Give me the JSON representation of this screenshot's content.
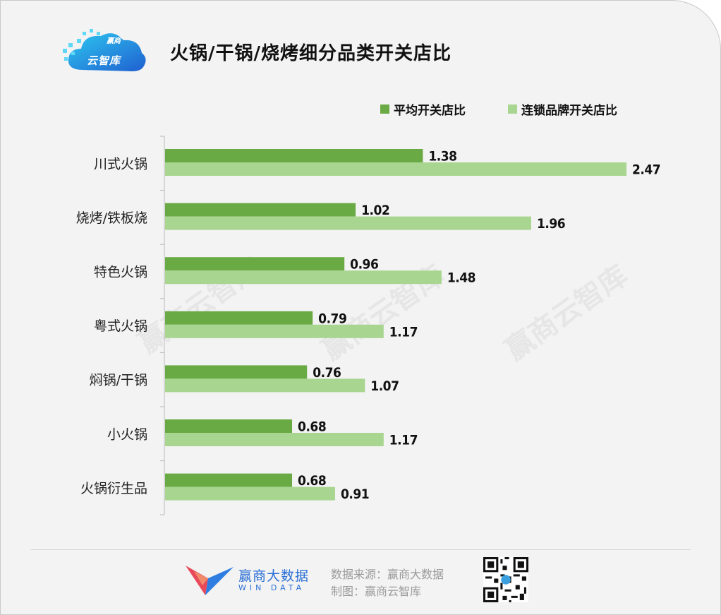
{
  "header": {
    "logo_text": "云智库",
    "logo_top_text": "赢商",
    "title": "火锅/干锅/烧烤细分品类开关店比"
  },
  "colors": {
    "series1": "#6aaa45",
    "series2": "#a8d590",
    "background": "#f3f3f3"
  },
  "chart_data": {
    "type": "bar",
    "orientation": "horizontal",
    "title": "火锅/干锅/烧烤细分品类开关店比",
    "categories": [
      "川式火锅",
      "烧烤/铁板烧",
      "特色火锅",
      "粤式火锅",
      "焖锅/干锅",
      "小火锅",
      "火锅衍生品"
    ],
    "series": [
      {
        "name": "平均开关店比",
        "values": [
          1.38,
          1.02,
          0.96,
          0.79,
          0.76,
          0.68,
          0.68
        ]
      },
      {
        "name": "连锁品牌开关店比",
        "values": [
          2.47,
          1.96,
          1.48,
          1.17,
          1.07,
          1.17,
          0.91
        ]
      }
    ],
    "xlim": [
      0,
      2.5
    ],
    "grid": false,
    "legend_position": "top-right",
    "value_labels": true
  },
  "watermark": "赢商云智库",
  "footer": {
    "brand_cn": "赢商大数据",
    "brand_en": "WIN DATA",
    "source": "数据来源：赢商大数据",
    "producer": "制图：赢商云智库"
  },
  "icons": {
    "logo": "cloud-logo-icon",
    "brand": "windata-logo-icon",
    "qr": "qr-code-icon"
  }
}
